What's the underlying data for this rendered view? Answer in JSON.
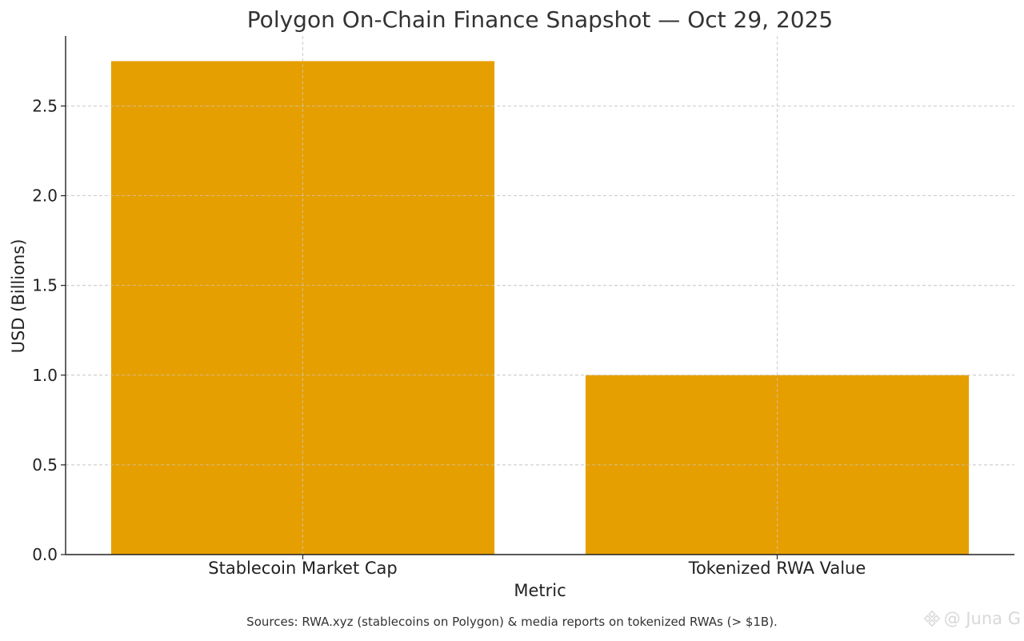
{
  "chart_data": {
    "type": "bar",
    "title": "Polygon On-Chain Finance Snapshot — Oct 29, 2025",
    "xlabel": "Metric",
    "ylabel": "USD (Billions)",
    "categories": [
      "Stablecoin Market Cap",
      "Tokenized RWA Value"
    ],
    "values": [
      2.75,
      1.0
    ],
    "ylim": [
      0,
      2.89
    ],
    "yticks": [
      0.0,
      0.5,
      1.0,
      1.5,
      2.0,
      2.5
    ],
    "ytick_labels": [
      "0.0",
      "0.5",
      "1.0",
      "1.5",
      "2.0",
      "2.5"
    ],
    "grid": true,
    "bar_color": "#E69F00",
    "grid_color": "#cccccc",
    "axis_color": "#222222"
  },
  "footer": {
    "source_note": "Sources: RWA.xyz (stablecoins on Polygon) & media reports on tokenized RWAs (> $1B).",
    "watermark": "@ Juna G",
    "watermark_icon": "binance-logo-icon"
  }
}
